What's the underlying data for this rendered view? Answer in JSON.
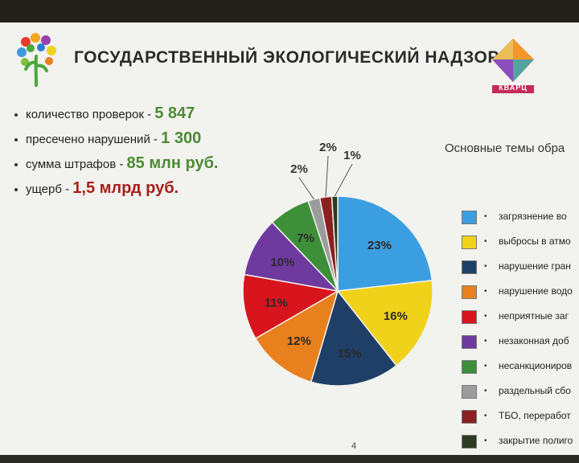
{
  "slide": {
    "title": "ГОСУДАРСТВЕННЫЙ ЭКОЛОГИЧЕСКИЙ НАДЗОР",
    "page_number": "4",
    "channel_logo_text": "КВАРЦ",
    "stats": [
      {
        "label": "количество проверок - ",
        "value": "5 847",
        "color": "#4d8a34"
      },
      {
        "label": "пресечено нарушений - ",
        "value": "1 300",
        "color": "#4d8a34"
      },
      {
        "label": "сумма штрафов - ",
        "value": "85 млн руб.",
        "color": "#4d8a34"
      },
      {
        "label": "ущерб - ",
        "value": "1,5 млрд руб.",
        "color": "#a8201a"
      }
    ],
    "legend_title": "Основные темы обра",
    "legend": [
      {
        "label": "загрязнение во",
        "color": "#3b9ee0"
      },
      {
        "label": "выбросы в атмо",
        "color": "#f0d21a"
      },
      {
        "label": "нарушение гран",
        "color": "#1f3f66"
      },
      {
        "label": "нарушение водо",
        "color": "#e8801e"
      },
      {
        "label": "неприятные заг",
        "color": "#d8141c"
      },
      {
        "label": "незаконная доб",
        "color": "#6e3aa0"
      },
      {
        "label": "несанкциониров",
        "color": "#3d8f3a"
      },
      {
        "label": "раздельный сбо",
        "color": "#9c9c9c"
      },
      {
        "label": "ТБО, переработ",
        "color": "#8a2020"
      },
      {
        "label": "закрытие полиго",
        "color": "#2f3a22"
      }
    ]
  },
  "chart_data": {
    "type": "pie",
    "title": "Основные темы обра",
    "categories": [
      "загрязнение во",
      "выбросы в атмо",
      "нарушение гран",
      "нарушение водо",
      "неприятные заг",
      "незаконная доб",
      "несанкциониров",
      "раздельный сбо",
      "ТБО, переработ",
      "закрытие полиго"
    ],
    "values": [
      23,
      16,
      15,
      12,
      11,
      10,
      7,
      2,
      2,
      1
    ],
    "labels": [
      "23%",
      "16%",
      "15%",
      "12%",
      "11%",
      "10%",
      "7%",
      "2%",
      "2%",
      "1%"
    ],
    "colors": [
      "#3b9ee0",
      "#f0d21a",
      "#1f3f66",
      "#e8801e",
      "#d8141c",
      "#6e3aa0",
      "#3d8f3a",
      "#9c9c9c",
      "#8a2020",
      "#2f3a22"
    ]
  }
}
